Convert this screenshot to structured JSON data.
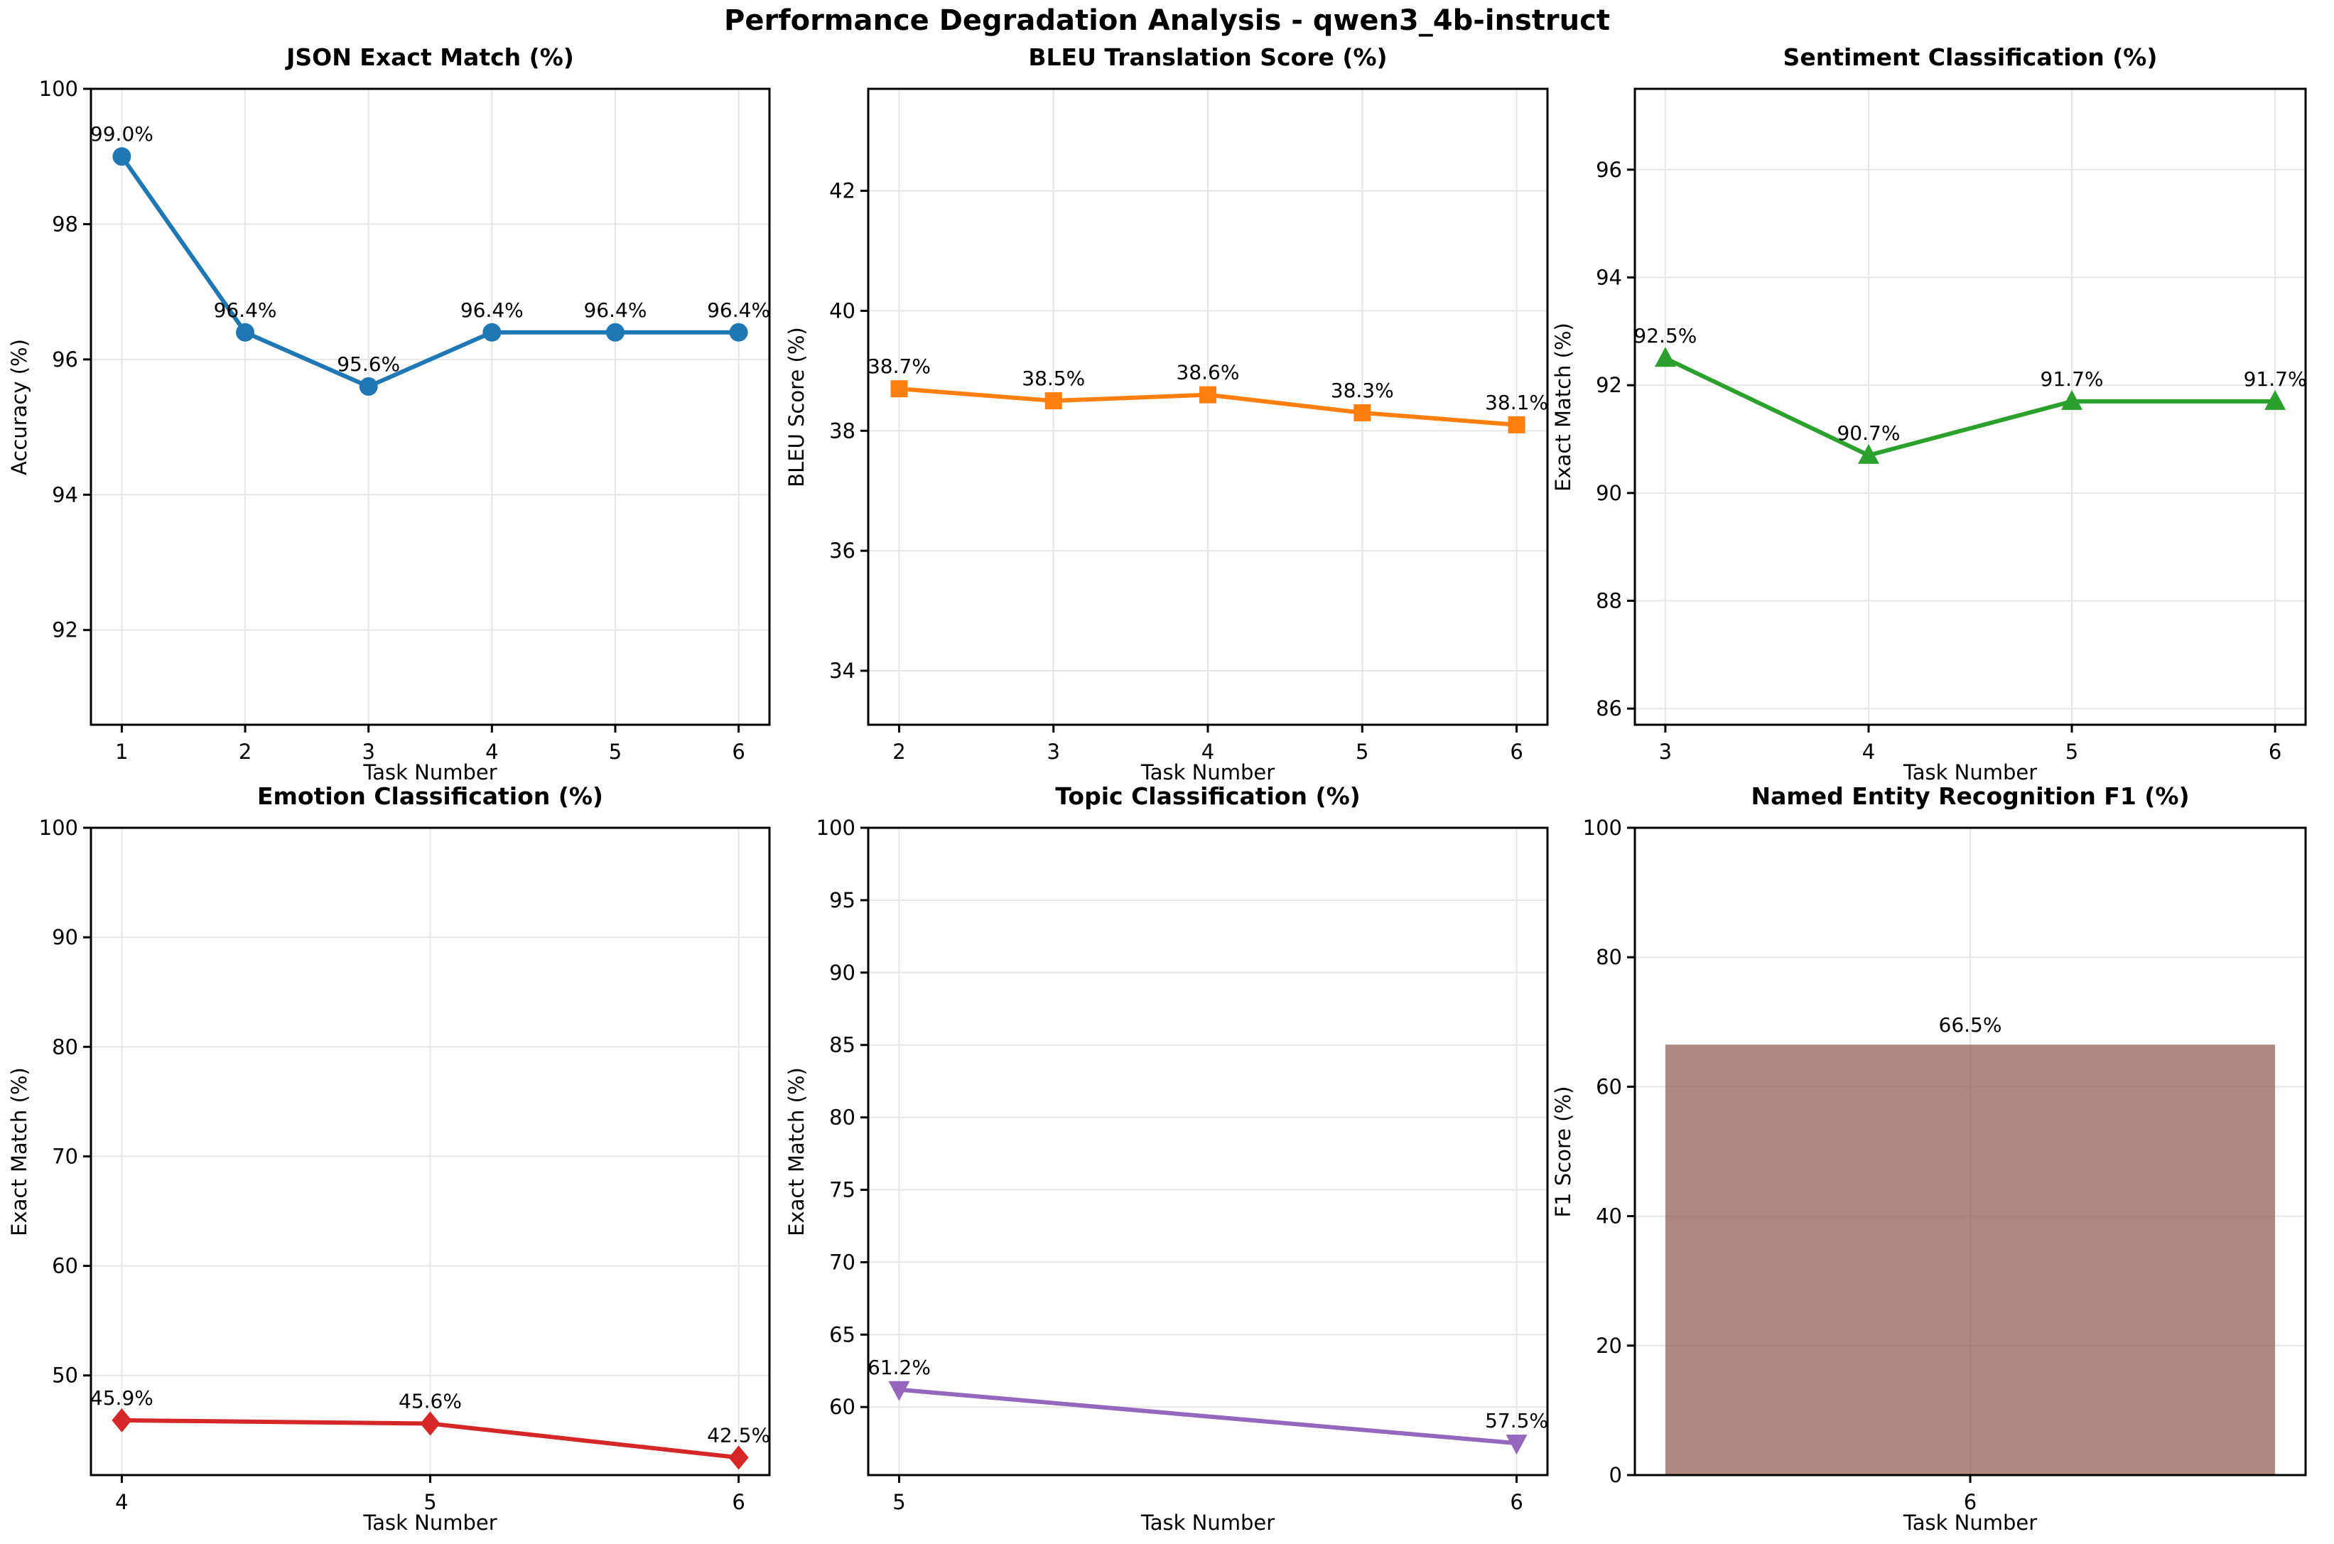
{
  "figure": {
    "title": "Performance Degradation Analysis - qwen3_4b-instruct",
    "background_color": "#ffffff",
    "grid_color": "#e6e6e6",
    "spine_color": "#000000",
    "text_color": "#000000"
  },
  "chart_data": [
    {
      "type": "line",
      "title": "JSON Exact Match (%)",
      "xlabel": "Task Number",
      "ylabel": "Accuracy (%)",
      "x": [
        1,
        2,
        3,
        4,
        5,
        6
      ],
      "values": [
        99.0,
        96.4,
        95.6,
        96.4,
        96.4,
        96.4
      ],
      "point_labels": [
        "99.0%",
        "96.4%",
        "95.6%",
        "96.4%",
        "96.4%",
        "96.4%"
      ],
      "color": "#1f77b4",
      "marker": "circle",
      "xlim": [
        0.75,
        6.25
      ],
      "ylim": [
        90.6,
        100
      ],
      "xticks": [
        1,
        2,
        3,
        4,
        5,
        6
      ],
      "yticks": [
        92,
        94,
        96,
        98,
        100
      ],
      "grid": true
    },
    {
      "type": "line",
      "title": "BLEU Translation Score (%)",
      "xlabel": "Task Number",
      "ylabel": "BLEU Score (%)",
      "x": [
        2,
        3,
        4,
        5,
        6
      ],
      "values": [
        38.7,
        38.5,
        38.6,
        38.3,
        38.1
      ],
      "point_labels": [
        "38.7%",
        "38.5%",
        "38.6%",
        "38.3%",
        "38.1%"
      ],
      "color": "#ff7f0e",
      "marker": "square",
      "xlim": [
        1.8,
        6.2
      ],
      "ylim": [
        33.1,
        43.7
      ],
      "xticks": [
        2,
        3,
        4,
        5,
        6
      ],
      "yticks": [
        34,
        36,
        38,
        40,
        42
      ],
      "grid": true
    },
    {
      "type": "line",
      "title": "Sentiment Classification (%)",
      "xlabel": "Task Number",
      "ylabel": "Exact Match (%)",
      "x": [
        3,
        4,
        5,
        6
      ],
      "values": [
        92.5,
        90.7,
        91.7,
        91.7
      ],
      "point_labels": [
        "92.5%",
        "90.7%",
        "91.7%",
        "91.7%"
      ],
      "color": "#2ca02c",
      "marker": "triangle-up",
      "xlim": [
        2.85,
        6.15
      ],
      "ylim": [
        85.7,
        97.5
      ],
      "xticks": [
        3,
        4,
        5,
        6
      ],
      "yticks": [
        86,
        88,
        90,
        92,
        94,
        96
      ],
      "grid": true
    },
    {
      "type": "line",
      "title": "Emotion Classification (%)",
      "xlabel": "Task Number",
      "ylabel": "Exact Match (%)",
      "x": [
        4,
        5,
        6
      ],
      "values": [
        45.9,
        45.6,
        42.5
      ],
      "point_labels": [
        "45.9%",
        "45.6%",
        "42.5%"
      ],
      "color": "#d62728",
      "marker": "diamond",
      "xlim": [
        3.9,
        6.1
      ],
      "ylim": [
        40.9,
        100
      ],
      "xticks": [
        4,
        5,
        6
      ],
      "yticks": [
        50,
        60,
        70,
        80,
        90,
        100
      ],
      "grid": true
    },
    {
      "type": "line",
      "title": "Topic Classification (%)",
      "xlabel": "Task Number",
      "ylabel": "Exact Match (%)",
      "x": [
        5,
        6
      ],
      "values": [
        61.2,
        57.5
      ],
      "point_labels": [
        "61.2%",
        "57.5%"
      ],
      "color": "#9467bd",
      "marker": "triangle-down",
      "xlim": [
        4.95,
        6.05
      ],
      "ylim": [
        55.3,
        100
      ],
      "xticks": [
        5,
        6
      ],
      "yticks": [
        60,
        65,
        70,
        75,
        80,
        85,
        90,
        95,
        100
      ],
      "grid": true
    },
    {
      "type": "bar",
      "title": "Named Entity Recognition F1 (%)",
      "xlabel": "Task Number",
      "ylabel": "F1 Score (%)",
      "x": [
        6
      ],
      "values": [
        66.5
      ],
      "point_labels": [
        "66.5%"
      ],
      "color": "#8c564b",
      "bar_opacity": 0.7,
      "bar_span": [
        5.6,
        6.4
      ],
      "xlim": [
        5.56,
        6.44
      ],
      "ylim": [
        0,
        100
      ],
      "xticks": [
        6
      ],
      "yticks": [
        0,
        20,
        40,
        60,
        80,
        100
      ],
      "grid": true
    }
  ]
}
